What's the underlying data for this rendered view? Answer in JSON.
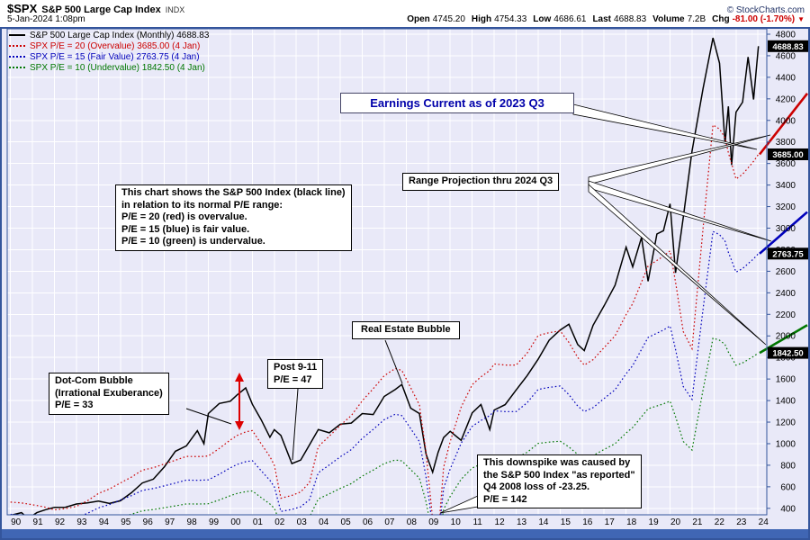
{
  "colors": {
    "plot_bg": "#e9e9f8",
    "grid": "#ffffff",
    "frame": "#34559c",
    "bottom_bar": "#4066b4",
    "spx": "#000000",
    "pe20": "#cc0000",
    "pe15": "#0000bb",
    "pe10": "#007700",
    "change_negative": "#cc0000",
    "annotation_heading": "#0000aa"
  },
  "header": {
    "symbol": "$SPX",
    "title": "S&P 500 Large Cap Index",
    "exchange": "INDX",
    "copyright": "© StockCharts.com",
    "date": "5-Jan-2024 1:08pm",
    "quote": [
      {
        "label": "Open",
        "value": "4745.20"
      },
      {
        "label": "High",
        "value": "4754.33"
      },
      {
        "label": "Low",
        "value": "4686.61"
      },
      {
        "label": "Last",
        "value": "4688.83"
      },
      {
        "label": "Volume",
        "value": "7.2B"
      },
      {
        "label": "Chg",
        "value": "-81.00 (-1.70%)",
        "color": "#cc0000"
      }
    ],
    "down_arrow": "▼"
  },
  "legend": [
    {
      "text": "S&P 500 Large Cap Index (Monthly) 4688.83",
      "color": "#000000",
      "style": "solid"
    },
    {
      "text": "SPX P/E = 20 (Overvalue) 3685.00 (4 Jan)",
      "color": "#cc0000",
      "style": "dotted"
    },
    {
      "text": "SPX P/E = 15 (Fair Value) 2763.75 (4 Jan)",
      "color": "#0000bb",
      "style": "dotted"
    },
    {
      "text": "SPX P/E = 10 (Undervalue) 1842.50 (4 Jan)",
      "color": "#007700",
      "style": "dotted"
    }
  ],
  "annotations": {
    "earnings_current": "Earnings Current as of 2023 Q3",
    "range_projection": "Range Projection thru 2024 Q3",
    "explanation": [
      "This chart shows the S&P 500 Index (black line)",
      "in relation to its normal P/E range:",
      "P/E = 20 (red) is overvalue.",
      "P/E = 15 (blue) is fair value.",
      "P/E = 10 (green) is undervalue."
    ],
    "real_estate_bubble": "Real Estate Bubble",
    "post_911": [
      "Post 9-11",
      "P/E = 47"
    ],
    "dotcom_bubble": [
      "Dot-Com Bubble",
      "(Irrational Exuberance)",
      "P/E = 33"
    ],
    "downspike": [
      "This downspike was caused by",
      "the S&P 500 Index \"as reported\"",
      "Q4 2008 loss of -23.25.",
      "P/E = 142"
    ]
  },
  "price_boxes": [
    {
      "label": "4688.83",
      "value": 4688.83
    },
    {
      "label": "3685.00",
      "value": 3685
    },
    {
      "label": "2763.75",
      "value": 2763.75
    },
    {
      "label": "1842.50",
      "value": 1842.5
    }
  ],
  "chart_data": {
    "type": "line",
    "title": "S&P 500 Large Cap Index (Monthly) vs normal P/E range (P/E 20 / 15 / 10)",
    "grid": true,
    "legend_position": "top-left",
    "xlim": [
      1989.85,
      2024.4
    ],
    "ylim": [
      340,
      4850
    ],
    "y_ticks": [
      400,
      600,
      800,
      1000,
      1200,
      1400,
      1600,
      1800,
      2000,
      2200,
      2400,
      2600,
      2800,
      3000,
      3200,
      3400,
      3600,
      3800,
      4000,
      4200,
      4400,
      4600,
      4800
    ],
    "x_label_years": [
      "90",
      "91",
      "92",
      "93",
      "94",
      "95",
      "96",
      "97",
      "98",
      "99",
      "00",
      "01",
      "02",
      "03",
      "04",
      "05",
      "06",
      "07",
      "08",
      "09",
      "10",
      "11",
      "12",
      "13",
      "14",
      "15",
      "16",
      "17",
      "18",
      "19",
      "20",
      "21",
      "22",
      "23",
      "24"
    ],
    "x": [
      1990,
      1990.5,
      1990.8,
      1991.2,
      1991.6,
      1992,
      1992.5,
      1993,
      1993.5,
      1994,
      1994.5,
      1995,
      1995.5,
      1996,
      1996.5,
      1997,
      1997.5,
      1998,
      1998.5,
      1998.8,
      1999,
      1999.5,
      2000,
      2000.3,
      2000.7,
      2001,
      2001.4,
      2001.8,
      2002,
      2002.3,
      2002.8,
      2003.2,
      2003.6,
      2004,
      2004.5,
      2005,
      2005.5,
      2006,
      2006.5,
      2007,
      2007.5,
      2007.8,
      2008.2,
      2008.6,
      2008.9,
      2009.2,
      2009.45,
      2009.7,
      2010,
      2010.5,
      2011,
      2011.4,
      2011.8,
      2012,
      2012.5,
      2013,
      2013.5,
      2014,
      2014.5,
      2015,
      2015.4,
      2015.8,
      2016.1,
      2016.5,
      2017,
      2017.5,
      2018,
      2018.3,
      2018.7,
      2019,
      2019.4,
      2019.7,
      2020,
      2020.25,
      2020.6,
      2021,
      2021.5,
      2021.95,
      2022.25,
      2022.5,
      2022.65,
      2022.8,
      2023,
      2023.3,
      2023.55,
      2023.8,
      2024.02
    ],
    "series": [
      {
        "name": "S&P 500 Large Cap Index (Monthly)",
        "color": "#000000",
        "style": "solid",
        "width": 1.5,
        "last": 4688.83,
        "values": [
          335,
          360,
          306,
          360,
          388,
          409,
          410,
          440,
          450,
          467,
          445,
          470,
          545,
          636,
          671,
          786,
          930,
          980,
          1120,
          1000,
          1280,
          1373,
          1394,
          1452,
          1518,
          1366,
          1224,
          1060,
          1130,
          1077,
          815,
          848,
          990,
          1131,
          1101,
          1181,
          1191,
          1280,
          1270,
          1438,
          1503,
          1549,
          1330,
          1280,
          903,
          735,
          920,
          1057,
          1115,
          1031,
          1286,
          1363,
          1131,
          1312,
          1362,
          1498,
          1631,
          1783,
          1960,
          2055,
          2108,
          1920,
          1864,
          2099,
          2279,
          2470,
          2824,
          2641,
          2914,
          2507,
          2946,
          2977,
          3226,
          2585,
          3100,
          3714,
          4297,
          4766,
          4530,
          3785,
          4130,
          3586,
          4077,
          4169,
          4589,
          4194,
          4689
        ]
      },
      {
        "name": "SPX P/E = 20 (Overvalue)",
        "color": "#cc0000",
        "style": "dotted",
        "width": 1.2,
        "last": 3685.0,
        "values": [
          458,
          450,
          440,
          426,
          410,
          386,
          398,
          418,
          470,
          538,
          580,
          636,
          690,
          754,
          778,
          812,
          846,
          882,
          880,
          882,
          886,
          956,
          1034,
          1076,
          1110,
          1122,
          1000,
          880,
          800,
          494,
          520,
          552,
          640,
          974,
          1070,
          1170,
          1260,
          1398,
          1510,
          1630,
          1698,
          1680,
          1520,
          1360,
          920,
          298,
          138,
          780,
          1020,
          1340,
          1548,
          1620,
          1680,
          1740,
          1730,
          1730,
          1840,
          2004,
          2030,
          2046,
          1940,
          1800,
          1730,
          1780,
          1892,
          2000,
          2198,
          2300,
          2500,
          2648,
          2700,
          2740,
          2790,
          2500,
          2040,
          1882,
          3000,
          3958,
          3920,
          3840,
          3700,
          3600,
          3456,
          3500,
          3560,
          3620,
          3685
        ]
      },
      {
        "name": "SPX P/E = 15 (Fair Value)",
        "color": "#0000bb",
        "style": "dotted",
        "width": 1.2,
        "last": 2763.75,
        "values": [
          344,
          338,
          330,
          320,
          308,
          290,
          299,
          314,
          353,
          404,
          435,
          477,
          518,
          566,
          584,
          609,
          635,
          662,
          660,
          662,
          665,
          717,
          776,
          807,
          833,
          842,
          750,
          660,
          600,
          371,
          390,
          414,
          480,
          731,
          803,
          878,
          945,
          1049,
          1133,
          1223,
          1274,
          1260,
          1140,
          1020,
          690,
          224,
          104,
          585,
          765,
          1005,
          1161,
          1215,
          1260,
          1305,
          1298,
          1298,
          1380,
          1503,
          1523,
          1535,
          1455,
          1350,
          1298,
          1335,
          1419,
          1500,
          1649,
          1725,
          1875,
          1986,
          2025,
          2055,
          2093,
          1875,
          1530,
          1412,
          2250,
          2969,
          2940,
          2880,
          2775,
          2700,
          2592,
          2625,
          2670,
          2715,
          2763.75
        ]
      },
      {
        "name": "SPX P/E = 10 (Undervalue)",
        "color": "#007700",
        "style": "dotted",
        "width": 1.2,
        "last": 1842.5,
        "values": [
          229,
          225,
          220,
          213,
          205,
          193,
          199,
          209,
          235,
          269,
          290,
          318,
          345,
          377,
          389,
          406,
          423,
          441,
          440,
          441,
          443,
          478,
          517,
          538,
          555,
          561,
          500,
          440,
          400,
          247,
          260,
          276,
          320,
          487,
          535,
          585,
          630,
          699,
          755,
          815,
          849,
          840,
          760,
          680,
          460,
          149,
          69,
          390,
          510,
          670,
          774,
          810,
          840,
          870,
          865,
          865,
          920,
          1002,
          1015,
          1023,
          970,
          900,
          865,
          890,
          946,
          1000,
          1099,
          1150,
          1250,
          1324,
          1350,
          1370,
          1395,
          1250,
          1020,
          941,
          1500,
          1979,
          1960,
          1920,
          1850,
          1800,
          1728,
          1750,
          1780,
          1810,
          1842.5
        ]
      }
    ],
    "projections": [
      {
        "name": "P/E 20 projection thru 2024 Q3",
        "color": "#cc0000",
        "from": 3685,
        "to": 4250
      },
      {
        "name": "P/E 15 projection thru 2024 Q3",
        "color": "#0000bb",
        "from": 2763.75,
        "to": 3150
      },
      {
        "name": "P/E 10 projection thru 2024 Q3",
        "color": "#007700",
        "from": 1842.5,
        "to": 2100
      }
    ]
  }
}
